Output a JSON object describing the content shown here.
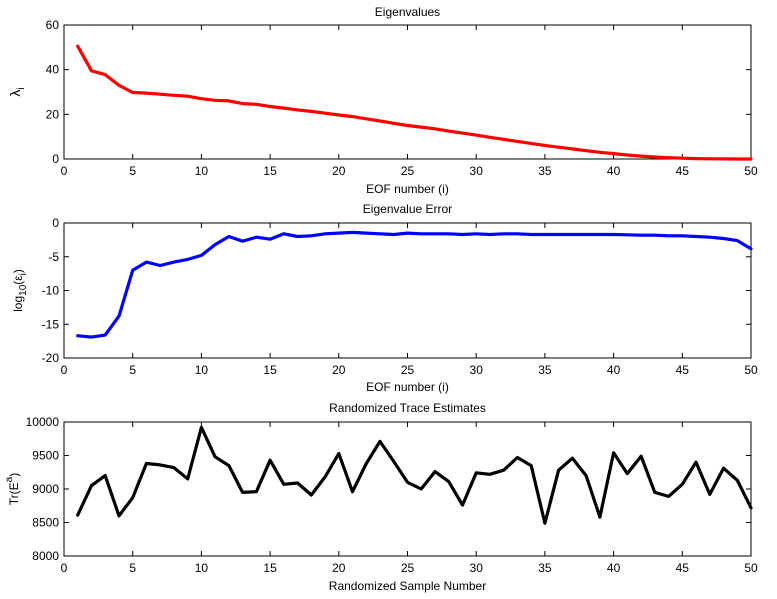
{
  "chart_data": [
    {
      "type": "line",
      "title": "Eigenvalues",
      "xlabel": "EOF number (i)",
      "ylabel": {
        "base": "λ",
        "sub": "i"
      },
      "xlim": [
        0,
        50
      ],
      "ylim": [
        0,
        60
      ],
      "xticks": [
        0,
        5,
        10,
        15,
        20,
        25,
        30,
        35,
        40,
        45,
        50
      ],
      "yticks": [
        0,
        20,
        40,
        60
      ],
      "grid": false,
      "series": [
        {
          "color": "#ff0000",
          "x": [
            1,
            2,
            3,
            4,
            5,
            6,
            7,
            8,
            9,
            10,
            11,
            12,
            13,
            14,
            15,
            16,
            17,
            18,
            19,
            20,
            21,
            22,
            23,
            24,
            25,
            26,
            27,
            28,
            29,
            30,
            31,
            32,
            33,
            34,
            35,
            36,
            37,
            38,
            39,
            40,
            41,
            42,
            43,
            44,
            45,
            46,
            47,
            48,
            49,
            50
          ],
          "y": [
            50.5,
            39.5,
            37.8,
            33,
            29.8,
            29.5,
            29,
            28.5,
            28.1,
            27,
            26.3,
            26,
            24.8,
            24.5,
            23.5,
            22.8,
            22,
            21.3,
            20.5,
            19.7,
            19,
            18,
            17,
            16,
            15,
            14.3,
            13.5,
            12.5,
            11.6,
            10.7,
            9.7,
            8.8,
            7.9,
            7,
            6.1,
            5.3,
            4.5,
            3.7,
            3,
            2.4,
            1.8,
            1.3,
            0.9,
            0.6,
            0.35,
            0.2,
            0.1,
            0.05,
            0.02,
            0.0
          ]
        }
      ]
    },
    {
      "type": "line",
      "title": "Eigenvalue Error",
      "xlabel": "EOF number (i)",
      "ylabel": {
        "base": "log",
        "sub1": "10",
        "mid": "(ε",
        "sub": "i",
        "end": ")"
      },
      "xlim": [
        0,
        50
      ],
      "ylim": [
        -20,
        0
      ],
      "xticks": [
        0,
        5,
        10,
        15,
        20,
        25,
        30,
        35,
        40,
        45,
        50
      ],
      "yticks": [
        -20,
        -15,
        -10,
        -5,
        0
      ],
      "grid": false,
      "series": [
        {
          "color": "#0000ff",
          "x": [
            1,
            2,
            3,
            4,
            5,
            6,
            7,
            8,
            9,
            10,
            11,
            12,
            13,
            14,
            15,
            16,
            17,
            18,
            19,
            20,
            21,
            22,
            23,
            24,
            25,
            26,
            27,
            28,
            29,
            30,
            31,
            32,
            33,
            34,
            35,
            36,
            37,
            38,
            39,
            40,
            41,
            42,
            43,
            44,
            45,
            46,
            47,
            48,
            49,
            50
          ],
          "y": [
            -16.7,
            -16.9,
            -16.6,
            -13.8,
            -7.0,
            -5.8,
            -6.3,
            -5.8,
            -5.4,
            -4.8,
            -3.2,
            -2.0,
            -2.7,
            -2.1,
            -2.4,
            -1.6,
            -2.0,
            -1.9,
            -1.6,
            -1.5,
            -1.4,
            -1.5,
            -1.6,
            -1.7,
            -1.5,
            -1.6,
            -1.6,
            -1.6,
            -1.7,
            -1.6,
            -1.7,
            -1.6,
            -1.6,
            -1.7,
            -1.7,
            -1.7,
            -1.7,
            -1.7,
            -1.7,
            -1.7,
            -1.75,
            -1.8,
            -1.8,
            -1.9,
            -1.9,
            -2.0,
            -2.1,
            -2.3,
            -2.6,
            -3.8
          ]
        }
      ]
    },
    {
      "type": "line",
      "title": "Randomized Trace Estimates",
      "xlabel": "Randomized Sample Number",
      "ylabel": {
        "base": "Tr(E",
        "sup": "a",
        "end": ")"
      },
      "xlim": [
        0,
        50
      ],
      "ylim": [
        8000,
        10000
      ],
      "xticks": [
        0,
        5,
        10,
        15,
        20,
        25,
        30,
        35,
        40,
        45,
        50
      ],
      "yticks": [
        8000,
        8500,
        9000,
        9500,
        10000
      ],
      "grid": false,
      "series": [
        {
          "color": "#000000",
          "x": [
            1,
            2,
            3,
            4,
            5,
            6,
            7,
            8,
            9,
            10,
            11,
            12,
            13,
            14,
            15,
            16,
            17,
            18,
            19,
            20,
            21,
            22,
            23,
            24,
            25,
            26,
            27,
            28,
            29,
            30,
            31,
            32,
            33,
            34,
            35,
            36,
            37,
            38,
            39,
            40,
            41,
            42,
            43,
            44,
            45,
            46,
            47,
            48,
            49,
            50
          ],
          "y": [
            8610,
            9050,
            9200,
            8600,
            8870,
            9380,
            9360,
            9320,
            9150,
            9920,
            9480,
            9350,
            8950,
            8960,
            9430,
            9070,
            9090,
            8910,
            9180,
            9530,
            8960,
            9380,
            9710,
            9410,
            9100,
            9000,
            9260,
            9110,
            8760,
            9240,
            9220,
            9280,
            9470,
            9350,
            8490,
            9280,
            9460,
            9200,
            8580,
            9540,
            9230,
            9490,
            8950,
            8890,
            9070,
            9400,
            8920,
            9310,
            9130,
            8720
          ]
        }
      ]
    }
  ]
}
